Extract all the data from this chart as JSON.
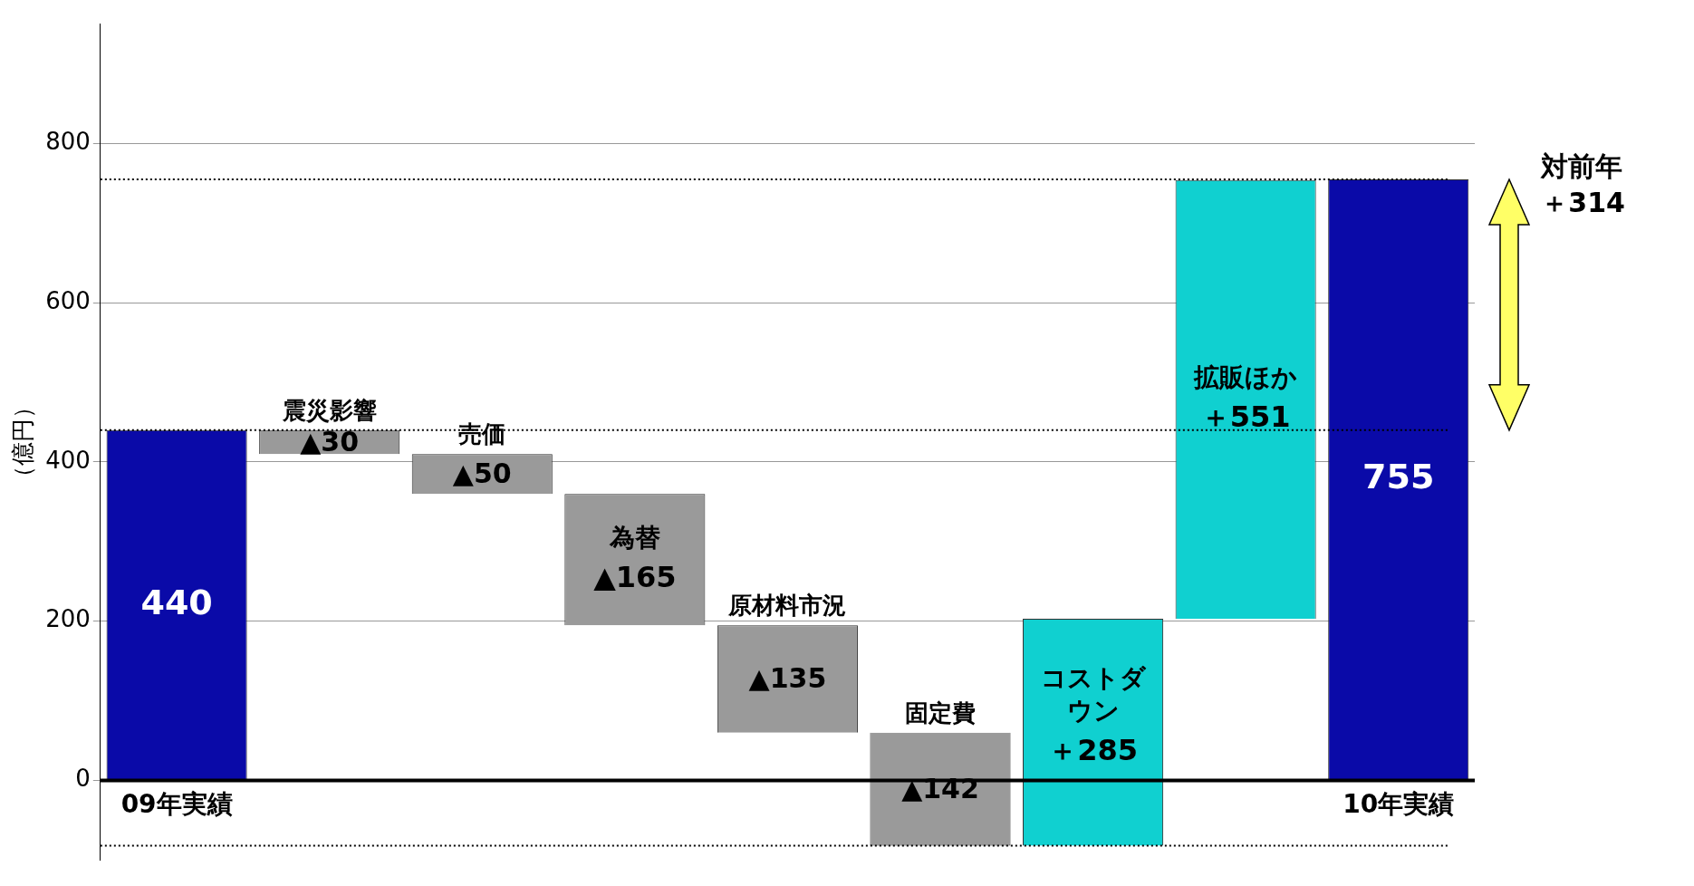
{
  "chart_data": {
    "type": "bar",
    "ylabel": "（億円）",
    "categories": [
      "09年実績",
      "震災影響",
      "売価",
      "為替",
      "原材料市況",
      "固定費",
      "コストダウン",
      "拡販ほか",
      "10年実績"
    ],
    "values": [
      440,
      -30,
      -50,
      -165,
      -135,
      -142,
      285,
      551,
      755
    ],
    "base": [
      0,
      440,
      410,
      360,
      195,
      60,
      -82,
      203,
      0
    ],
    "value_labels": [
      "440",
      "▲30",
      "▲50",
      "▲165",
      "▲135",
      "▲142",
      "＋285",
      "＋551",
      "755"
    ],
    "colors": [
      "#0a0aa8",
      "#9a9a9a",
      "#9a9a9a",
      "#9a9a9a",
      "#9a9a9a",
      "#9a9a9a",
      "#10d0d0",
      "#10d0d0",
      "#0a0aa8"
    ],
    "ylim": [
      -100,
      950
    ],
    "yticks": [
      0,
      200,
      400,
      600,
      800
    ],
    "grid": "y",
    "legend": false,
    "ref_lines": [
      {
        "axis": "y",
        "value": 440,
        "line_style": "dotted"
      },
      {
        "axis": "y",
        "value": 755,
        "line_style": "dotted"
      },
      {
        "axis": "y",
        "value": -82,
        "line_style": "dotted"
      }
    ],
    "annotations": [
      "対前年",
      "＋314"
    ]
  }
}
